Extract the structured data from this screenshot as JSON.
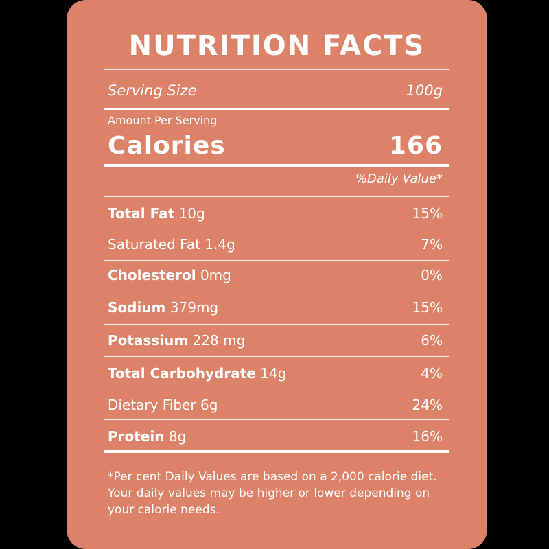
{
  "label": {
    "title": "NUTRITION FACTS",
    "serving_size_label": "Serving Size",
    "serving_size_value": "100g",
    "amount_per_serving": "Amount Per Serving",
    "calories_label": "Calories",
    "calories_value": "166",
    "daily_value_header": "%Daily Value*",
    "nutrients": [
      {
        "name": "Total Fat",
        "amount": "10g",
        "dv": "15%"
      },
      {
        "name": "Saturated Fat",
        "amount": "1.4g",
        "dv": "7%"
      },
      {
        "name": "Cholesterol",
        "amount": "0mg",
        "dv": "0%"
      },
      {
        "name": "Sodium",
        "amount": "379mg",
        "dv": "15%"
      },
      {
        "name": "Potassium",
        "amount": "228 mg",
        "dv": "6%"
      },
      {
        "name": "Total Carbohydrate",
        "amount": "14g",
        "dv": "4%"
      },
      {
        "name": "Dietary Fiber",
        "amount": "6g",
        "dv": "24%"
      },
      {
        "name": "Protein",
        "amount": "8g",
        "dv": "16%"
      }
    ],
    "footnote": "*Per cent Daily Values are based on a 2,000 calorie diet. Your daily values may be higher or lower depending on your calorie needs."
  },
  "colors": {
    "background": "#000000",
    "card": "#db8268",
    "text": "#ffffff"
  }
}
